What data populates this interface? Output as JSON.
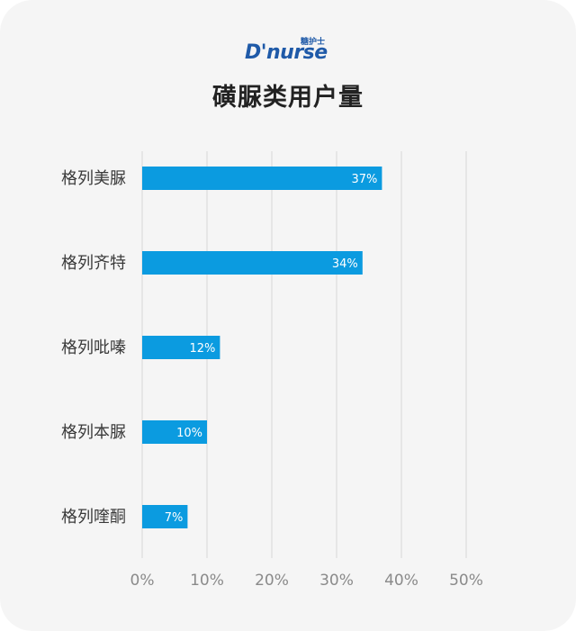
{
  "brand": {
    "logo_text": "D'nurse",
    "logo_cn": "糖护士"
  },
  "chart_data": {
    "type": "bar",
    "orientation": "horizontal",
    "title": "磺脲类用户量",
    "categories": [
      "格列美脲",
      "格列齐特",
      "格列吡嗪",
      "格列本脲",
      "格列喹酮"
    ],
    "values": [
      37,
      34,
      12,
      10,
      7
    ],
    "value_labels": [
      "37%",
      "34%",
      "12%",
      "10%",
      "7%"
    ],
    "xlim": [
      0,
      50
    ],
    "xticks": [
      0,
      10,
      20,
      30,
      40,
      50
    ],
    "xtick_labels": [
      "0%",
      "10%",
      "20%",
      "30%",
      "40%",
      "50%"
    ],
    "grid": true,
    "bar_color": "#0b9be0",
    "grid_color": "#d6d6d6"
  }
}
